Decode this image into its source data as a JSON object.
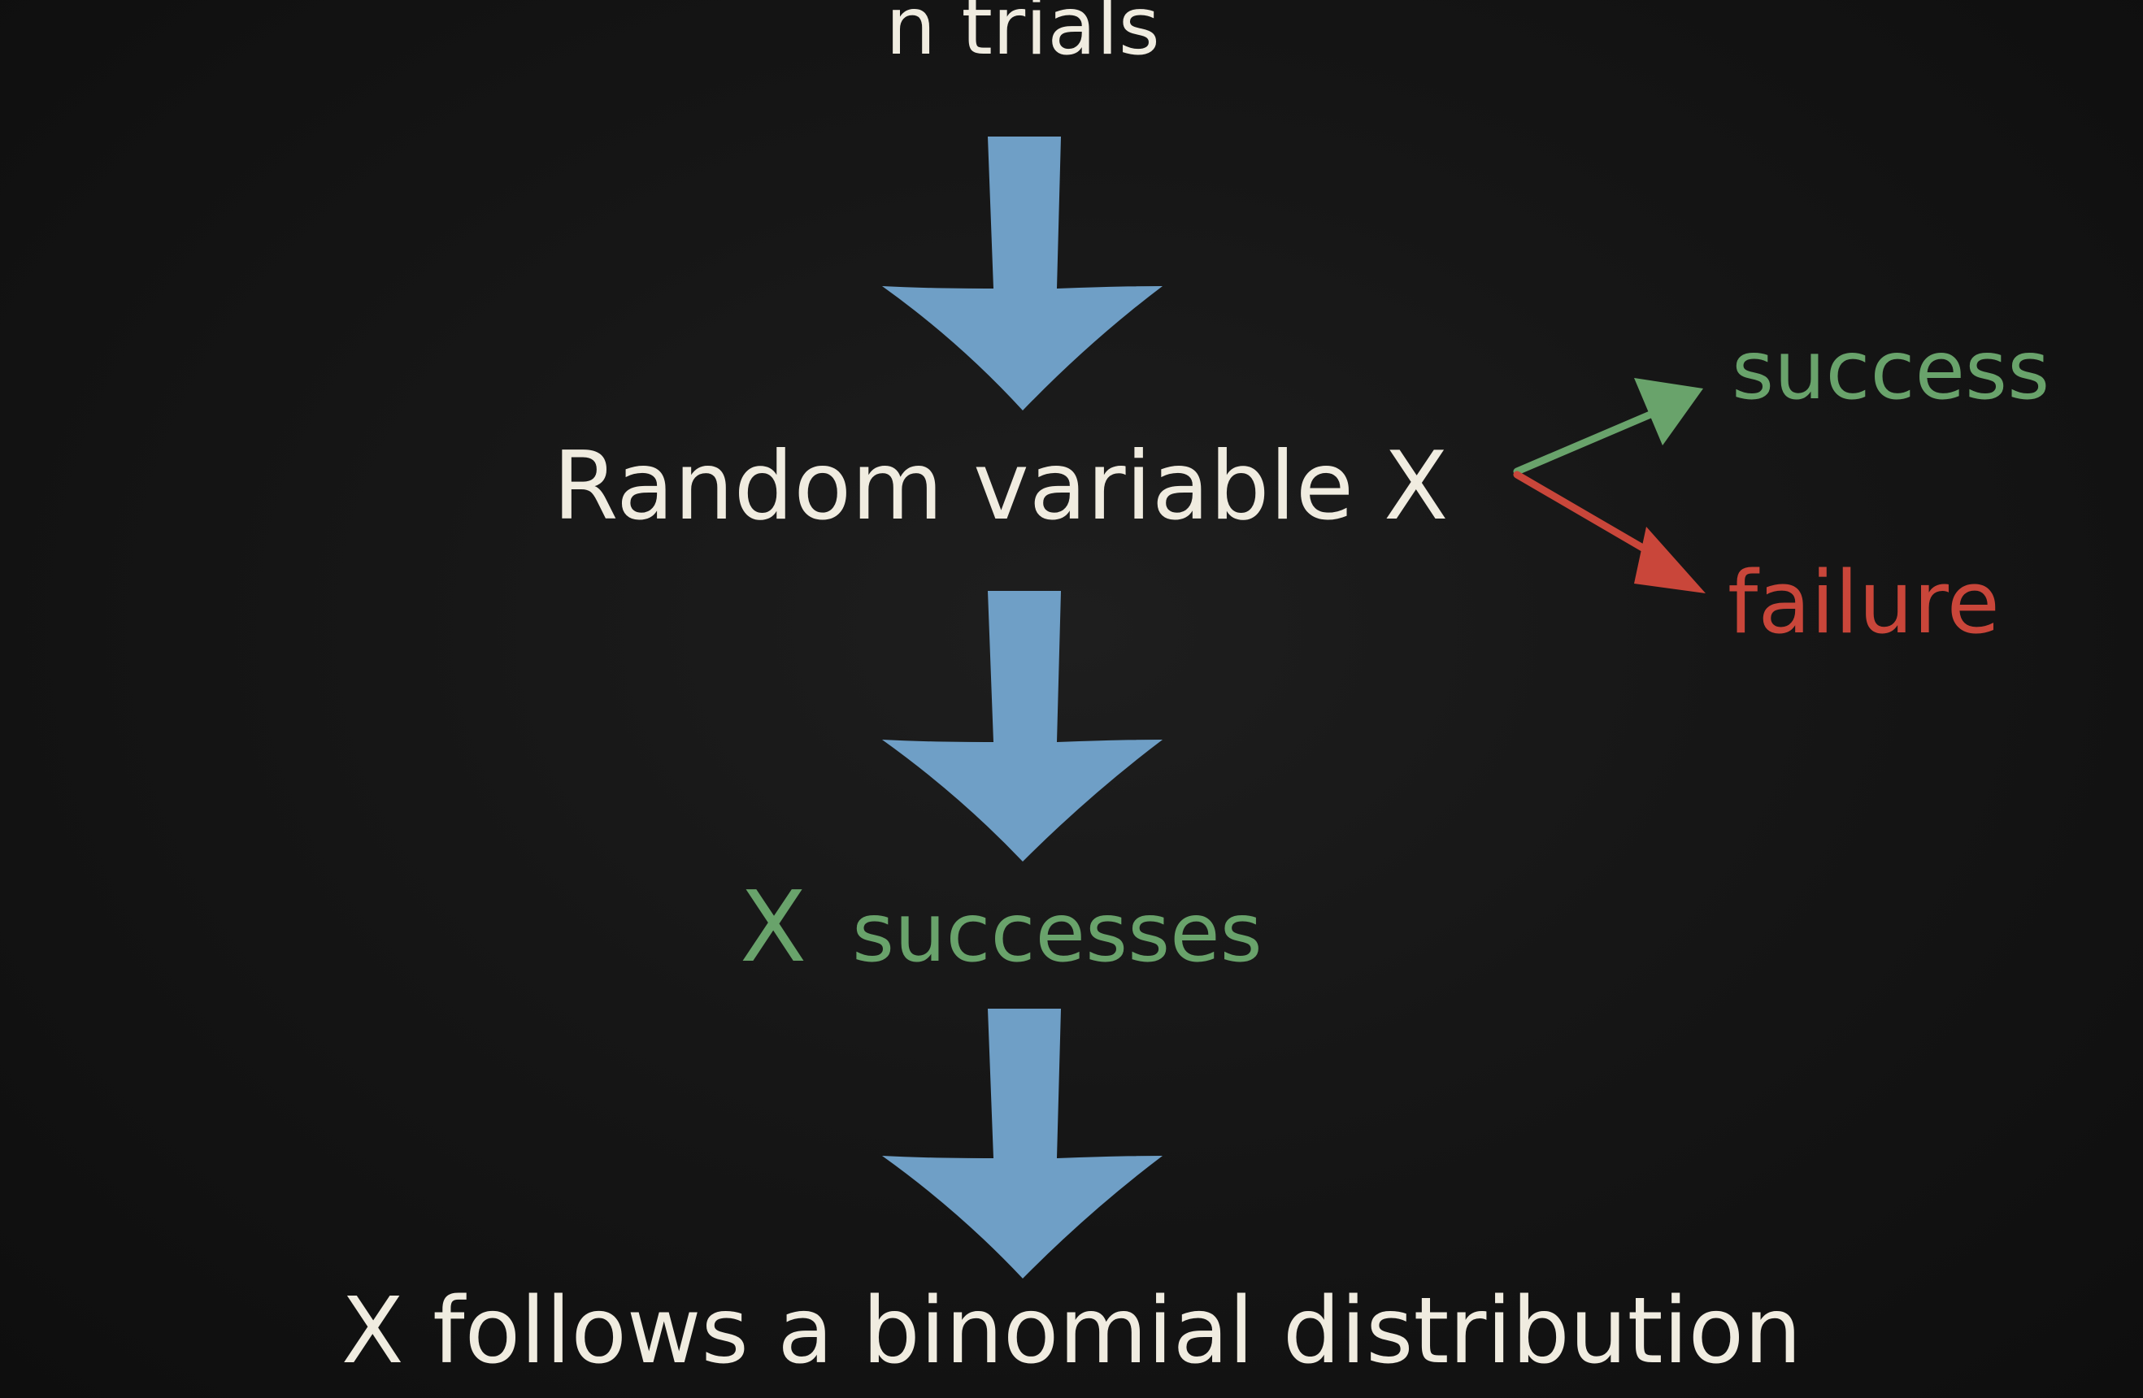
{
  "colors": {
    "background": "#141414",
    "chalk_white": "#f0ece0",
    "chalk_green": "#69a36b",
    "chalk_red": "#c9463a",
    "arrow_blue": "#6f9fc6"
  },
  "nodes": {
    "trials": {
      "label": "n trials"
    },
    "random_variable": {
      "label": "Random variable X"
    },
    "success_branch": {
      "label": "success"
    },
    "failure_branch": {
      "label": "failure"
    },
    "successes": {
      "var": "X",
      "label": "successes"
    },
    "conclusion": {
      "label": "X follows a binomial distribution"
    }
  }
}
